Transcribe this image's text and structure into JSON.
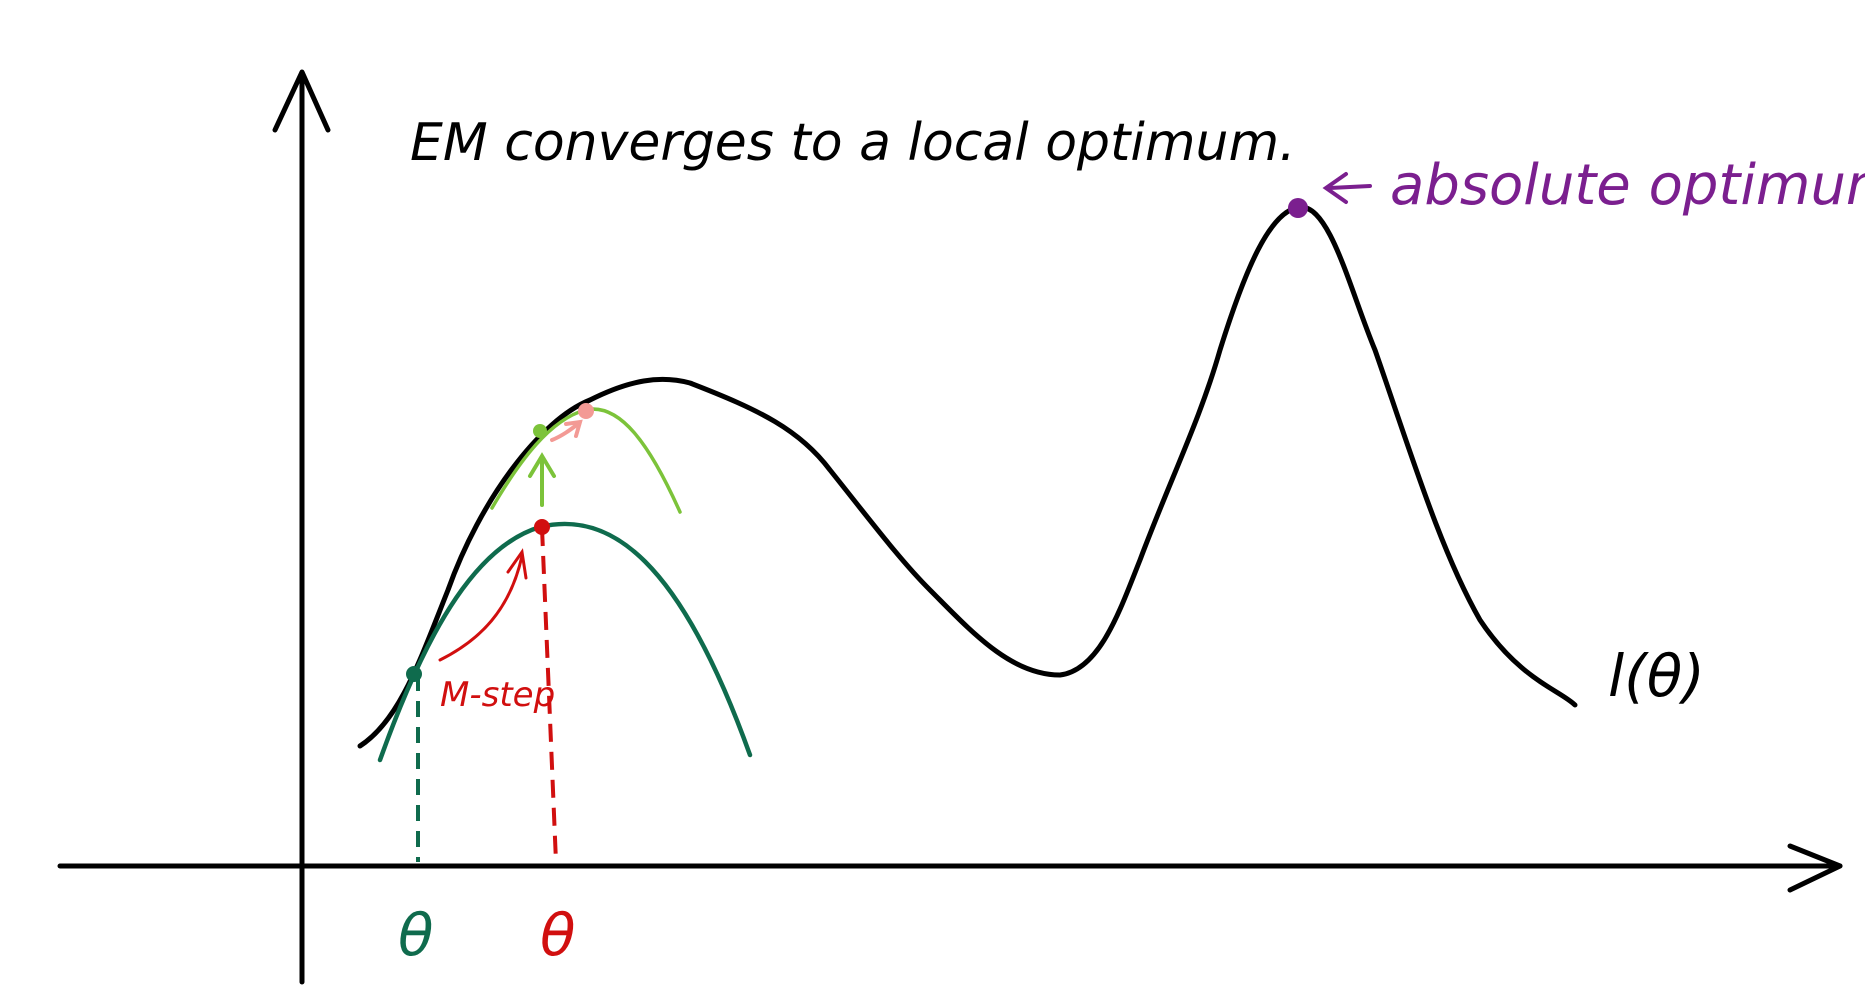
{
  "title": "EM converges to a local optimum.",
  "annotation": {
    "label": "absolute optimum"
  },
  "curve_label": "l(θ)",
  "step_label": "M-step",
  "theta_labels": [
    {
      "id": "theta-0",
      "text": "θ",
      "color": "#0f6b4d"
    },
    {
      "id": "theta-1",
      "text": "θ",
      "color": "#d10f0f"
    }
  ],
  "colors": {
    "ink": "#000000",
    "dark_green": "#0f6b4d",
    "light_green": "#7cc33a",
    "red": "#d10f0f",
    "pink": "#f39a95",
    "purple": "#7b1f8f"
  },
  "icons": {
    "x_axis_arrow": "arrowhead-right-icon",
    "y_axis_arrow": "arrowhead-up-icon",
    "annotation_arrow": "arrow-left-icon",
    "m_step_arrow": "curved-arrow-icon",
    "lift_arrow": "arrow-up-icon",
    "next_step_arrow": "arrow-up-right-icon"
  }
}
